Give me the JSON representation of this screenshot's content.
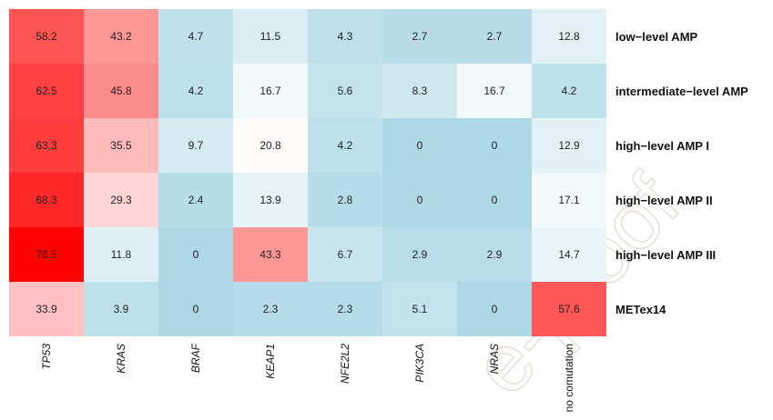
{
  "chart_data": {
    "type": "heatmap",
    "rows": [
      "low−level AMP",
      "intermediate−level AMP",
      "high−level AMP I",
      "high−level AMP II",
      "high−level AMP III",
      "METex14"
    ],
    "columns": [
      "TP53",
      "KRAS",
      "BRAF",
      "KEAP1",
      "NFE2L2",
      "PIK3CA",
      "NRAS",
      "no comutation"
    ],
    "italic_columns": [
      "TP53",
      "KRAS",
      "BRAF",
      "KEAP1",
      "NFE2L2",
      "PIK3CA",
      "NRAS"
    ],
    "values": [
      [
        58.2,
        43.2,
        4.7,
        11.5,
        4.3,
        2.7,
        2.7,
        12.8
      ],
      [
        62.5,
        45.8,
        4.2,
        16.7,
        5.6,
        8.3,
        16.7,
        4.2
      ],
      [
        63.3,
        35.5,
        9.7,
        20.8,
        4.2,
        0,
        0,
        12.9
      ],
      [
        68.3,
        29.3,
        2.4,
        13.9,
        2.8,
        0,
        0,
        17.1
      ],
      [
        76.5,
        11.8,
        0,
        43.3,
        6.7,
        2.9,
        2.9,
        14.7
      ],
      [
        33.9,
        3.9,
        0,
        2.3,
        2.3,
        5.1,
        0,
        57.6
      ]
    ],
    "color_scale": {
      "low": "#add8e6",
      "mid": "#ffffff",
      "high": "#ff0000",
      "mid_value": 20,
      "max_value": 77
    }
  },
  "watermark": "e-proof"
}
